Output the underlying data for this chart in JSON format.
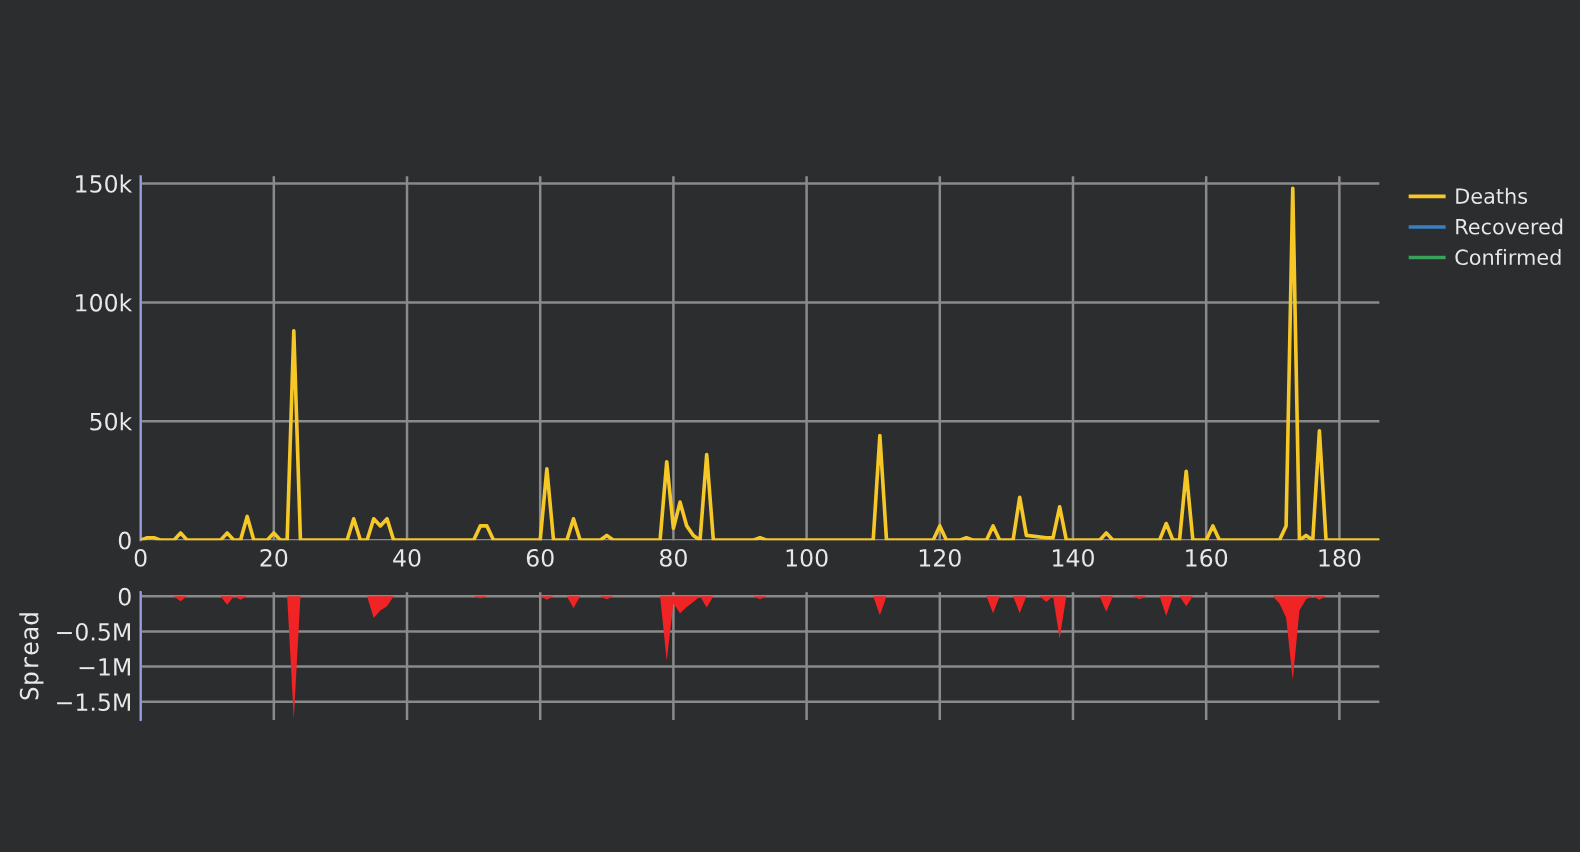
{
  "chart_data": [
    {
      "type": "line",
      "x": [
        0,
        1,
        2,
        3,
        5,
        6,
        7,
        9,
        12,
        13,
        14,
        15,
        16,
        17,
        19,
        20,
        21,
        22,
        23,
        24,
        31,
        32,
        33,
        34,
        35,
        36,
        37,
        38,
        50,
        51,
        52,
        53,
        60,
        61,
        62,
        64,
        65,
        66,
        69,
        70,
        71,
        78,
        79,
        80,
        81,
        82,
        83,
        84,
        85,
        86,
        92,
        93,
        94,
        110,
        111,
        112,
        119,
        120,
        121,
        123,
        124,
        125,
        127,
        128,
        129,
        131,
        132,
        133,
        136,
        137,
        138,
        139,
        144,
        145,
        146,
        153,
        154,
        155,
        156,
        157,
        158,
        160,
        161,
        162,
        171,
        172,
        173,
        174,
        175,
        176,
        177,
        178,
        186
      ],
      "series": [
        {
          "name": "Deaths",
          "color": "#f5c827",
          "values": [
            0,
            1000,
            1000,
            0,
            0,
            3000,
            0,
            0,
            0,
            3000,
            0,
            0,
            10000,
            0,
            0,
            3000,
            0,
            0,
            88000,
            0,
            0,
            9000,
            0,
            0,
            9000,
            6000,
            9000,
            0,
            0,
            6000,
            6000,
            0,
            0,
            30000,
            0,
            0,
            9000,
            0,
            0,
            2000,
            0,
            0,
            33000,
            5000,
            16000,
            6000,
            2000,
            0,
            36000,
            0,
            0,
            1000,
            0,
            0,
            44000,
            0,
            0,
            6000,
            0,
            0,
            1000,
            0,
            0,
            6000,
            0,
            0,
            18000,
            2000,
            1000,
            1000,
            14000,
            0,
            0,
            3000,
            0,
            0,
            7000,
            0,
            0,
            29000,
            0,
            0,
            6000,
            0,
            0,
            6000,
            148000,
            0,
            2000,
            0,
            46000,
            0,
            0
          ]
        },
        {
          "name": "Recovered",
          "color": "#3a7fc1",
          "values": [
            null,
            null,
            null,
            null,
            null,
            null,
            null,
            null,
            null,
            null,
            null,
            null,
            null,
            null,
            null,
            null,
            null,
            null,
            null,
            null,
            null,
            null,
            null,
            null,
            null,
            null,
            null,
            null,
            null,
            null,
            null,
            null,
            null,
            null,
            null,
            null,
            null,
            null,
            null,
            null,
            null,
            null,
            null,
            null,
            null,
            null,
            null,
            null,
            null,
            null,
            null,
            null,
            null,
            null,
            null,
            null,
            null,
            null,
            null,
            null,
            null,
            null,
            null,
            null,
            null,
            null,
            null,
            null,
            null,
            null,
            null,
            null,
            null,
            null,
            null,
            null,
            null,
            null,
            null,
            null,
            null,
            null,
            null,
            null,
            null,
            null,
            null,
            null,
            null,
            null,
            null,
            null,
            null
          ]
        },
        {
          "name": "Confirmed",
          "color": "#3aa05a",
          "values": [
            null,
            null,
            null,
            null,
            null,
            null,
            null,
            null,
            null,
            null,
            null,
            null,
            null,
            null,
            null,
            null,
            null,
            null,
            null,
            null,
            null,
            null,
            null,
            null,
            null,
            null,
            null,
            null,
            null,
            null,
            null,
            null,
            null,
            null,
            null,
            null,
            null,
            null,
            null,
            null,
            null,
            null,
            null,
            null,
            null,
            null,
            null,
            null,
            null,
            null,
            null,
            null,
            null,
            null,
            null,
            null,
            null,
            null,
            null,
            null,
            null,
            null,
            null,
            null,
            null,
            null,
            null,
            null,
            null,
            null,
            null,
            null,
            null,
            null,
            null,
            null,
            null,
            null,
            null,
            null,
            null,
            null,
            null,
            null,
            null,
            null,
            null,
            null,
            null,
            null,
            null,
            null,
            null
          ]
        }
      ],
      "xlim": [
        0,
        186
      ],
      "xticks": [
        0,
        20,
        40,
        60,
        80,
        100,
        120,
        140,
        160,
        180
      ],
      "ylim": [
        0,
        153000
      ],
      "yticks": [
        {
          "value": 0,
          "label": "0"
        },
        {
          "value": 50000,
          "label": "50k"
        },
        {
          "value": 100000,
          "label": "100k"
        },
        {
          "value": 150000,
          "label": "150k"
        }
      ],
      "grid": true,
      "legend": "top right",
      "marker": "none",
      "line_style": "solid"
    },
    {
      "type": "area",
      "ylabel": "Spread",
      "x": [
        0,
        5,
        6,
        7,
        12,
        13,
        14,
        15,
        16,
        22,
        23,
        24,
        34,
        35,
        36,
        37,
        38,
        50,
        51,
        52,
        60,
        61,
        62,
        64,
        65,
        66,
        69,
        70,
        71,
        78,
        79,
        80,
        81,
        82,
        83,
        84,
        85,
        86,
        92,
        93,
        94,
        110,
        111,
        112,
        127,
        128,
        129,
        131,
        132,
        133,
        135,
        136,
        137,
        138,
        139,
        144,
        145,
        146,
        149,
        150,
        151,
        153,
        154,
        155,
        156,
        157,
        158,
        170,
        171,
        172,
        173,
        174,
        175,
        176,
        177,
        178,
        186
      ],
      "series": [
        {
          "color": "#f02424",
          "values": [
            0,
            0,
            -70000,
            0,
            0,
            -120000,
            0,
            -50000,
            0,
            0,
            -1750000,
            0,
            0,
            -310000,
            -200000,
            -140000,
            0,
            0,
            -30000,
            0,
            0,
            -50000,
            0,
            0,
            -170000,
            0,
            0,
            -40000,
            0,
            0,
            -920000,
            -100000,
            -240000,
            -150000,
            -80000,
            0,
            -160000,
            0,
            0,
            -40000,
            0,
            0,
            -270000,
            0,
            0,
            -240000,
            0,
            0,
            -240000,
            0,
            0,
            -80000,
            0,
            -600000,
            0,
            0,
            -220000,
            0,
            0,
            -40000,
            0,
            0,
            -280000,
            0,
            0,
            -140000,
            0,
            0,
            -100000,
            -300000,
            -1190000,
            -200000,
            -40000,
            0,
            -50000,
            0,
            0
          ]
        }
      ],
      "xlim": [
        0,
        186
      ],
      "xticks": [
        0,
        20,
        40,
        60,
        80,
        100,
        120,
        140,
        160,
        180
      ],
      "ylim": [
        -1760000,
        60000
      ],
      "yticks": [
        {
          "value": 0,
          "label": "0"
        },
        {
          "value": -500000,
          "label": "−0.5M"
        },
        {
          "value": -1000000,
          "label": "−1M"
        },
        {
          "value": -1500000,
          "label": "−1.5M"
        }
      ],
      "grid": true,
      "tick_labels": "y"
    }
  ]
}
